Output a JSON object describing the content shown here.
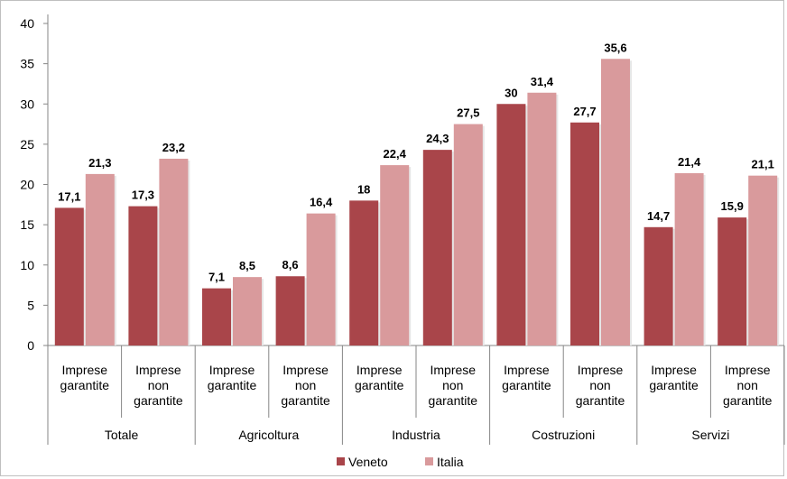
{
  "chart_data": {
    "type": "bar",
    "title": "",
    "xlabel": "",
    "ylabel": "",
    "ylim": [
      0,
      40
    ],
    "yticks": [
      0,
      5,
      10,
      15,
      20,
      25,
      30,
      35,
      40
    ],
    "grid": false,
    "legend_position": "bottom",
    "groups": [
      {
        "label": "Totale",
        "categories": [
          {
            "label": [
              "Imprese",
              "garantite"
            ],
            "values": [
              17.1,
              21.3
            ],
            "labels": [
              "17,1",
              "21,3"
            ]
          },
          {
            "label": [
              "Imprese",
              "non",
              "garantite"
            ],
            "values": [
              17.3,
              23.2
            ],
            "labels": [
              "17,3",
              "23,2"
            ]
          }
        ]
      },
      {
        "label": "Agricoltura",
        "categories": [
          {
            "label": [
              "Imprese",
              "garantite"
            ],
            "values": [
              7.1,
              8.5
            ],
            "labels": [
              "7,1",
              "8,5"
            ]
          },
          {
            "label": [
              "Imprese",
              "non",
              "garantite"
            ],
            "values": [
              8.6,
              16.4
            ],
            "labels": [
              "8,6",
              "16,4"
            ]
          }
        ]
      },
      {
        "label": "Industria",
        "categories": [
          {
            "label": [
              "Imprese",
              "garantite"
            ],
            "values": [
              18,
              22.4
            ],
            "labels": [
              "18",
              "22,4"
            ]
          },
          {
            "label": [
              "Imprese",
              "non",
              "garantite"
            ],
            "values": [
              24.3,
              27.5
            ],
            "labels": [
              "24,3",
              "27,5"
            ]
          }
        ]
      },
      {
        "label": "Costruzioni",
        "categories": [
          {
            "label": [
              "Imprese",
              "garantite"
            ],
            "values": [
              30,
              31.4
            ],
            "labels": [
              "30",
              "31,4"
            ]
          },
          {
            "label": [
              "Imprese",
              "non",
              "garantite"
            ],
            "values": [
              27.7,
              35.6
            ],
            "labels": [
              "27,7",
              "35,6"
            ]
          }
        ]
      },
      {
        "label": "Servizi",
        "categories": [
          {
            "label": [
              "Imprese",
              "garantite"
            ],
            "values": [
              14.7,
              21.4
            ],
            "labels": [
              "14,7",
              "21,4"
            ]
          },
          {
            "label": [
              "Imprese",
              "non",
              "garantite"
            ],
            "values": [
              15.9,
              21.1
            ],
            "labels": [
              "15,9",
              "21,1"
            ]
          }
        ]
      }
    ],
    "series": [
      {
        "name": "Veneto",
        "color": "#a9454a"
      },
      {
        "name": "Italia",
        "color": "#d99a9c"
      }
    ]
  }
}
